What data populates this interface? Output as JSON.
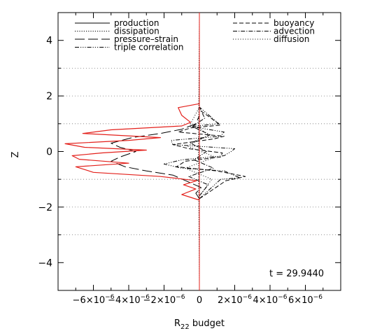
{
  "chart_data": {
    "type": "line",
    "xlabel_main": "R",
    "xlabel_sub": "22",
    "xlabel_rest": " budget",
    "ylabel": "Z",
    "xlim": [
      -8e-06,
      8e-06
    ],
    "ylim": [
      -5,
      5
    ],
    "x_ticks": [
      {
        "value": -6e-06,
        "mant": "−6×10",
        "exp": "−6"
      },
      {
        "value": -4e-06,
        "mant": "−4×10",
        "exp": "−6"
      },
      {
        "value": -2e-06,
        "mant": "−2×10",
        "exp": "−6"
      },
      {
        "value": 0,
        "mant": "0",
        "exp": ""
      },
      {
        "value": 2e-06,
        "mant": "2×10",
        "exp": "−6"
      },
      {
        "value": 4e-06,
        "mant": "4×10",
        "exp": "−6"
      },
      {
        "value": 6e-06,
        "mant": "6×10",
        "exp": "−6"
      }
    ],
    "y_ticks": [
      -4,
      -2,
      0,
      2,
      4
    ],
    "h_reference_lines": [
      -3,
      -2,
      -1,
      1,
      2,
      3
    ],
    "annotation": "t = 29.9440",
    "legend": [
      {
        "label": "production",
        "dash": ""
      },
      {
        "label": "dissipation",
        "dash": "1.2,2"
      },
      {
        "label": "pressure–strain",
        "dash": "14,5"
      },
      {
        "label": "triple correlation",
        "dash": "6,2,1.2,2,1.2,2,1.2,2"
      },
      {
        "label": "buoyancy",
        "dash": "6,3"
      },
      {
        "label": "advection",
        "dash": "6,2,1.2,2"
      },
      {
        "label": "diffusion",
        "dash": "1,2.5"
      }
    ],
    "series": [
      {
        "label": "pressure–strain",
        "color": "#000000",
        "dash": "14,5",
        "points": [
          [
            0,
            -1.7
          ],
          [
            -2e-07,
            -1.5
          ],
          [
            1e-07,
            -1.3
          ],
          [
            -6e-07,
            -1.1
          ],
          [
            -1.5e-06,
            -0.85
          ],
          [
            -3e-06,
            -0.7
          ],
          [
            -4.2e-06,
            -0.55
          ],
          [
            -5e-06,
            -0.35
          ],
          [
            -4.5e-06,
            -0.2
          ],
          [
            -3.6e-06,
            0.0
          ],
          [
            -4.5e-06,
            0.15
          ],
          [
            -5e-06,
            0.3
          ],
          [
            -3.8e-06,
            0.5
          ],
          [
            -2.2e-06,
            0.65
          ],
          [
            -1e-06,
            0.8
          ],
          [
            -2e-07,
            1.0
          ],
          [
            0,
            1.3
          ],
          [
            0,
            1.7
          ]
        ]
      },
      {
        "label": "triple correlation",
        "color": "#000000",
        "dash": "6,2,1.2,2,1.2,2,1.2,2",
        "points": [
          [
            0,
            -1.7
          ],
          [
            1.2e-06,
            -1.0
          ],
          [
            2.3e-06,
            -0.95
          ],
          [
            1.4e-06,
            -0.7
          ],
          [
            -1e-06,
            -0.6
          ],
          [
            -2e-06,
            -0.45
          ],
          [
            -1e-06,
            -0.3
          ],
          [
            1.4e-06,
            -0.15
          ],
          [
            1.8e-06,
            0.0
          ],
          [
            2e-06,
            0.1
          ],
          [
            -1.5e-06,
            0.25
          ],
          [
            -1.6e-06,
            0.4
          ],
          [
            1.2e-06,
            0.55
          ],
          [
            1.4e-06,
            0.7
          ],
          [
            -5e-07,
            0.9
          ],
          [
            1.1e-06,
            1.0
          ],
          [
            0,
            1.6
          ]
        ]
      },
      {
        "label": "buoyancy",
        "color": "#000000",
        "dash": "6,3",
        "points": [
          [
            0,
            -1.7
          ],
          [
            1.5e-06,
            -1.05
          ],
          [
            2.6e-06,
            -0.9
          ],
          [
            1e-06,
            -0.7
          ],
          [
            -1.3e-06,
            -0.55
          ],
          [
            -8e-07,
            -0.35
          ],
          [
            1.2e-06,
            -0.2
          ],
          [
            1.3e-06,
            -0.05
          ],
          [
            -6e-07,
            0.1
          ],
          [
            -1.5e-06,
            0.25
          ],
          [
            8e-07,
            0.45
          ],
          [
            1.4e-06,
            0.55
          ],
          [
            -1.2e-06,
            0.7
          ],
          [
            -5e-07,
            0.85
          ],
          [
            1.2e-06,
            0.95
          ],
          [
            0,
            1.5
          ]
        ]
      },
      {
        "label": "advection",
        "color": "#000000",
        "dash": "6,2,1.2,2",
        "points": [
          [
            0,
            -1.6
          ],
          [
            5e-07,
            -1.2
          ],
          [
            -6e-07,
            -0.9
          ],
          [
            8e-07,
            -0.6
          ],
          [
            -3e-07,
            -0.3
          ],
          [
            4e-07,
            0.0
          ],
          [
            -5e-07,
            0.3
          ],
          [
            6e-07,
            0.6
          ],
          [
            -4e-07,
            0.9
          ],
          [
            3e-07,
            1.2
          ],
          [
            0,
            1.6
          ]
        ]
      },
      {
        "label": "diffusion",
        "color": "#000000",
        "dash": "1,2.5",
        "points": [
          [
            0,
            -1.6
          ],
          [
            7e-07,
            -1.0
          ],
          [
            -8e-07,
            -0.6
          ],
          [
            9e-07,
            -0.2
          ],
          [
            -7e-07,
            0.2
          ],
          [
            6e-07,
            0.6
          ],
          [
            -5e-07,
            1.0
          ],
          [
            0,
            1.6
          ]
        ]
      },
      {
        "label": "dissipation",
        "color": "#000000",
        "dash": "1.2,2",
        "points": [
          [
            0,
            -4.8
          ],
          [
            -5e-08,
            0
          ],
          [
            0,
            4.8
          ]
        ]
      },
      {
        "label": "production",
        "color": "#000000",
        "dash": "",
        "points": [
          [
            0,
            -5
          ],
          [
            0,
            5
          ]
        ]
      },
      {
        "label": "total (red)",
        "color": "#e3201b",
        "dash": "",
        "points": [
          [
            0,
            -1.75
          ],
          [
            -1e-06,
            -1.55
          ],
          [
            -2e-07,
            -1.35
          ],
          [
            -9e-07,
            -1.2
          ],
          [
            -1.5e-07,
            -1.05
          ],
          [
            -2.2e-06,
            -0.9
          ],
          [
            -6e-06,
            -0.75
          ],
          [
            -7e-06,
            -0.55
          ],
          [
            -4e-06,
            -0.42
          ],
          [
            -6.8e-06,
            -0.28
          ],
          [
            -7.2e-06,
            -0.15
          ],
          [
            -5.5e-06,
            -0.05
          ],
          [
            -3e-06,
            0.05
          ],
          [
            -6.5e-06,
            0.15
          ],
          [
            -7.6e-06,
            0.28
          ],
          [
            -4e-06,
            0.4
          ],
          [
            -2.2e-06,
            0.5
          ],
          [
            -6.6e-06,
            0.65
          ],
          [
            -5e-06,
            0.78
          ],
          [
            -1e-06,
            0.92
          ],
          [
            -5e-07,
            1.05
          ],
          [
            -1e-06,
            1.3
          ],
          [
            -1.2e-06,
            1.58
          ],
          [
            0,
            1.72
          ]
        ]
      }
    ],
    "border_curve": {
      "color": "#e3201b",
      "x": 0
    }
  }
}
